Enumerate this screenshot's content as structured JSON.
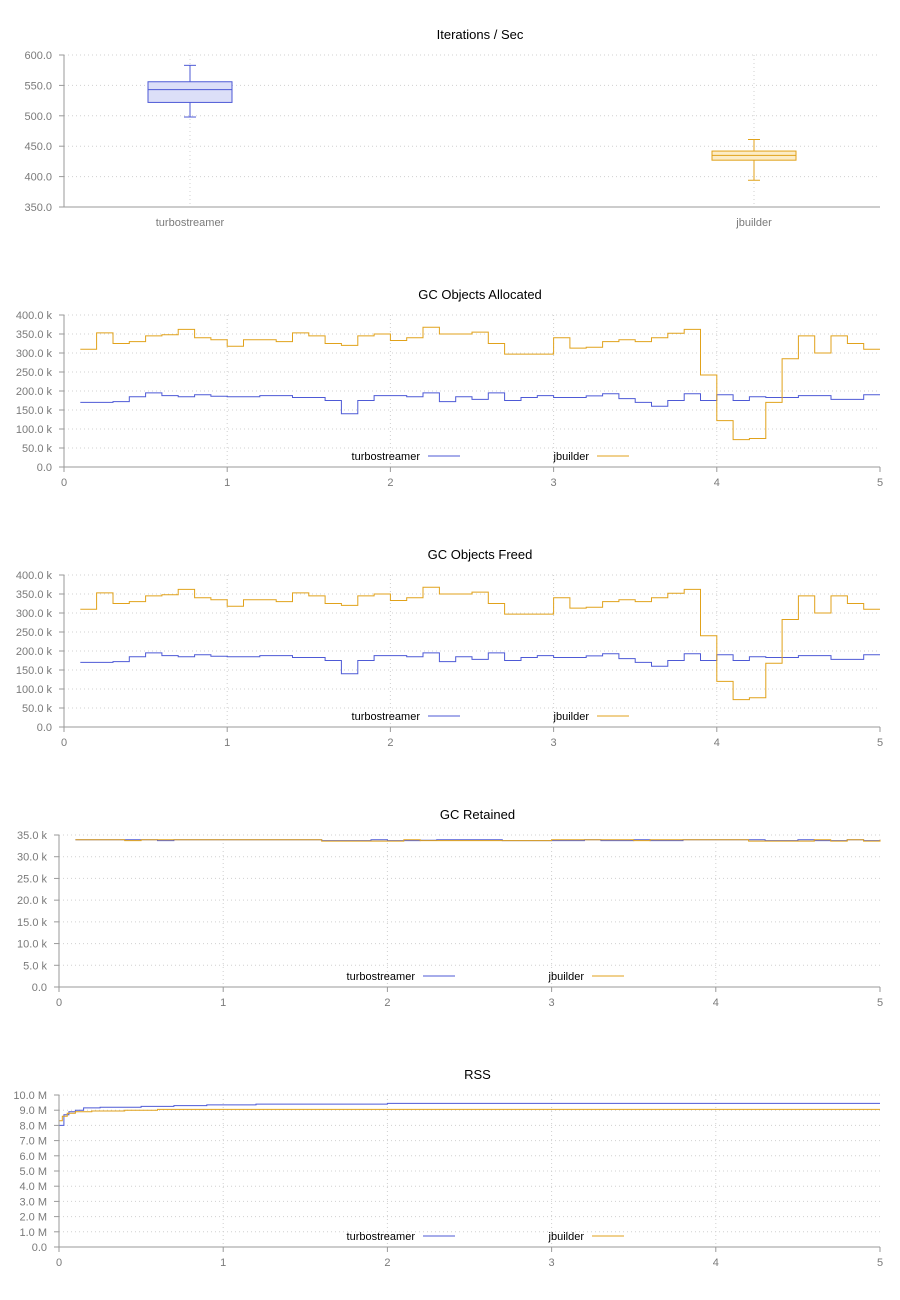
{
  "chart_data": [
    {
      "id": "ips",
      "type": "box",
      "title": "Iterations / Sec",
      "ylim": [
        350,
        600
      ],
      "yticks": [
        "350.0",
        "400.0",
        "450.0",
        "500.0",
        "550.0",
        "600.0"
      ],
      "ytick_values": [
        350,
        400,
        450,
        500,
        550,
        600
      ],
      "grid": true,
      "categories": [
        "turbostreamer",
        "jbuilder"
      ],
      "boxes": [
        {
          "name": "turbostreamer",
          "min": 498,
          "q1": 522,
          "median": 543,
          "q3": 556,
          "max": 583,
          "color": "#4e5ad6",
          "fill": "#dcdff8"
        },
        {
          "name": "jbuilder",
          "min": 394,
          "q1": 427,
          "median": 435,
          "q3": 442,
          "max": 461,
          "color": "#e1a21b",
          "fill": "#fcecc7"
        }
      ]
    },
    {
      "id": "alloc",
      "type": "step-line",
      "title": "GC Objects Allocated",
      "xlim": [
        0,
        5
      ],
      "xticks": [
        "0",
        "1",
        "2",
        "3",
        "4",
        "5"
      ],
      "ylim": [
        0,
        400000
      ],
      "yticks": [
        "0.0",
        "50.0 k",
        "100.0 k",
        "150.0 k",
        "200.0 k",
        "250.0 k",
        "300.0 k",
        "350.0 k",
        "400.0 k"
      ],
      "ytick_values": [
        0,
        50000,
        100000,
        150000,
        200000,
        250000,
        300000,
        350000,
        400000
      ],
      "grid": true,
      "legend": "bottom-center",
      "series": [
        {
          "name": "turbostreamer",
          "color": "#4e5ad6",
          "x": [
            0.1,
            0.3,
            0.4,
            0.5,
            0.6,
            0.7,
            0.8,
            0.9,
            1.0,
            1.2,
            1.4,
            1.6,
            1.7,
            1.8,
            1.9,
            2.1,
            2.2,
            2.3,
            2.4,
            2.5,
            2.6,
            2.7,
            2.8,
            2.9,
            3.0,
            3.2,
            3.3,
            3.4,
            3.5,
            3.6,
            3.7,
            3.8,
            3.9,
            4.0,
            4.1,
            4.2,
            4.3,
            4.5,
            4.7,
            4.9,
            5.0
          ],
          "y": [
            170000,
            172000,
            185000,
            195000,
            188000,
            185000,
            190000,
            186000,
            185000,
            188000,
            183000,
            175000,
            140000,
            175000,
            188000,
            185000,
            195000,
            172000,
            185000,
            178000,
            195000,
            175000,
            183000,
            188000,
            183000,
            187000,
            193000,
            180000,
            170000,
            160000,
            175000,
            193000,
            175000,
            190000,
            175000,
            185000,
            183000,
            188000,
            178000,
            190000,
            190000
          ]
        },
        {
          "name": "jbuilder",
          "color": "#e1a21b",
          "x": [
            0.1,
            0.2,
            0.3,
            0.4,
            0.5,
            0.6,
            0.7,
            0.8,
            0.9,
            1.0,
            1.1,
            1.3,
            1.4,
            1.5,
            1.6,
            1.7,
            1.8,
            1.9,
            2.0,
            2.1,
            2.2,
            2.3,
            2.4,
            2.5,
            2.6,
            2.7,
            2.8,
            3.0,
            3.1,
            3.2,
            3.3,
            3.4,
            3.5,
            3.6,
            3.7,
            3.8,
            3.9,
            4.0,
            4.1,
            4.2,
            4.3,
            4.4,
            4.5,
            4.6,
            4.7,
            4.8,
            4.9,
            5.0
          ],
          "y": [
            310000,
            353000,
            325000,
            330000,
            345000,
            348000,
            362000,
            340000,
            335000,
            318000,
            335000,
            330000,
            353000,
            345000,
            325000,
            320000,
            345000,
            350000,
            333000,
            340000,
            368000,
            350000,
            350000,
            355000,
            325000,
            297000,
            297000,
            340000,
            313000,
            315000,
            330000,
            335000,
            330000,
            340000,
            352000,
            362000,
            242000,
            122000,
            72000,
            75000,
            170000,
            285000,
            345000,
            300000,
            345000,
            325000,
            310000,
            310000
          ]
        }
      ]
    },
    {
      "id": "freed",
      "type": "step-line",
      "title": "GC Objects Freed",
      "xlim": [
        0,
        5
      ],
      "xticks": [
        "0",
        "1",
        "2",
        "3",
        "4",
        "5"
      ],
      "ylim": [
        0,
        400000
      ],
      "yticks": [
        "0.0",
        "50.0 k",
        "100.0 k",
        "150.0 k",
        "200.0 k",
        "250.0 k",
        "300.0 k",
        "350.0 k",
        "400.0 k"
      ],
      "ytick_values": [
        0,
        50000,
        100000,
        150000,
        200000,
        250000,
        300000,
        350000,
        400000
      ],
      "grid": true,
      "legend": "bottom-center",
      "series": [
        {
          "name": "turbostreamer",
          "color": "#4e5ad6",
          "x": [
            0.1,
            0.3,
            0.4,
            0.5,
            0.6,
            0.7,
            0.8,
            0.9,
            1.0,
            1.2,
            1.4,
            1.6,
            1.7,
            1.8,
            1.9,
            2.1,
            2.2,
            2.3,
            2.4,
            2.5,
            2.6,
            2.7,
            2.8,
            2.9,
            3.0,
            3.2,
            3.3,
            3.4,
            3.5,
            3.6,
            3.7,
            3.8,
            3.9,
            4.0,
            4.1,
            4.2,
            4.3,
            4.5,
            4.7,
            4.9,
            5.0
          ],
          "y": [
            170000,
            172000,
            185000,
            195000,
            188000,
            185000,
            190000,
            186000,
            185000,
            188000,
            183000,
            175000,
            140000,
            175000,
            188000,
            185000,
            195000,
            172000,
            185000,
            178000,
            195000,
            175000,
            183000,
            188000,
            183000,
            187000,
            193000,
            180000,
            170000,
            160000,
            175000,
            193000,
            175000,
            190000,
            175000,
            185000,
            183000,
            188000,
            178000,
            190000,
            190000
          ]
        },
        {
          "name": "jbuilder",
          "color": "#e1a21b",
          "x": [
            0.1,
            0.2,
            0.3,
            0.4,
            0.5,
            0.6,
            0.7,
            0.8,
            0.9,
            1.0,
            1.1,
            1.3,
            1.4,
            1.5,
            1.6,
            1.7,
            1.8,
            1.9,
            2.0,
            2.1,
            2.2,
            2.3,
            2.4,
            2.5,
            2.6,
            2.7,
            2.8,
            3.0,
            3.1,
            3.2,
            3.3,
            3.4,
            3.5,
            3.6,
            3.7,
            3.8,
            3.9,
            4.0,
            4.1,
            4.2,
            4.3,
            4.4,
            4.5,
            4.6,
            4.7,
            4.8,
            4.9,
            5.0
          ],
          "y": [
            310000,
            353000,
            325000,
            330000,
            345000,
            348000,
            362000,
            340000,
            335000,
            318000,
            335000,
            330000,
            353000,
            345000,
            325000,
            320000,
            345000,
            350000,
            333000,
            340000,
            368000,
            350000,
            350000,
            355000,
            325000,
            297000,
            297000,
            340000,
            313000,
            315000,
            330000,
            335000,
            330000,
            340000,
            352000,
            362000,
            240000,
            120000,
            72000,
            77000,
            168000,
            283000,
            345000,
            300000,
            345000,
            325000,
            310000,
            310000
          ]
        }
      ]
    },
    {
      "id": "retained",
      "type": "step-line",
      "title": "GC Retained",
      "xlim": [
        0,
        5
      ],
      "xticks": [
        "0",
        "1",
        "2",
        "3",
        "4",
        "5"
      ],
      "ylim": [
        0,
        35000
      ],
      "yticks": [
        "0.0",
        "5.0 k",
        "10.0 k",
        "15.0 k",
        "20.0 k",
        "25.0 k",
        "30.0 k",
        "35.0 k"
      ],
      "ytick_values": [
        0,
        5000,
        10000,
        15000,
        20000,
        25000,
        30000,
        35000
      ],
      "grid": true,
      "legend": "bottom-center",
      "series": [
        {
          "name": "turbostreamer",
          "color": "#4e5ad6",
          "x": [
            0.1,
            0.6,
            0.7,
            1.5,
            1.6,
            1.9,
            2.0,
            2.2,
            2.3,
            2.6,
            2.7,
            2.8,
            3.2,
            3.3,
            3.5,
            3.6,
            3.8,
            4.2,
            4.3,
            4.5,
            4.6,
            4.8,
            4.9,
            5.0
          ],
          "y": [
            33900,
            33700,
            33900,
            33900,
            33700,
            33900,
            33700,
            33800,
            33900,
            33900,
            33700,
            33700,
            33900,
            33700,
            33900,
            33700,
            33900,
            33900,
            33700,
            33900,
            33700,
            33900,
            33700,
            33900
          ]
        },
        {
          "name": "jbuilder",
          "color": "#e1a21b",
          "x": [
            0.1,
            0.4,
            0.5,
            1.5,
            1.6,
            2.1,
            2.2,
            3.0,
            3.5,
            3.6,
            4.0,
            4.2,
            4.6,
            4.7,
            4.8,
            4.9,
            5.0
          ],
          "y": [
            33900,
            33700,
            33900,
            33900,
            33600,
            33900,
            33700,
            33900,
            33700,
            33900,
            33900,
            33600,
            33900,
            33600,
            33900,
            33600,
            33900
          ]
        }
      ]
    },
    {
      "id": "rss",
      "type": "step-line",
      "title": "RSS",
      "xlim": [
        0,
        5
      ],
      "xticks": [
        "0",
        "1",
        "2",
        "3",
        "4",
        "5"
      ],
      "ylim": [
        0,
        10000000
      ],
      "yticks": [
        "0.0",
        "1.0 M",
        "2.0 M",
        "3.0 M",
        "4.0 M",
        "5.0 M",
        "6.0 M",
        "7.0 M",
        "8.0 M",
        "9.0 M",
        "10.0 M"
      ],
      "ytick_values": [
        0,
        1000000,
        2000000,
        3000000,
        4000000,
        5000000,
        6000000,
        7000000,
        8000000,
        9000000,
        10000000
      ],
      "grid": true,
      "legend": "bottom-center",
      "series": [
        {
          "name": "turbostreamer",
          "color": "#4e5ad6",
          "x": [
            0,
            0.03,
            0.06,
            0.1,
            0.15,
            0.25,
            0.5,
            0.7,
            0.9,
            1.2,
            2.0,
            5.0
          ],
          "y": [
            8000000,
            8700000,
            8900000,
            9000000,
            9150000,
            9200000,
            9250000,
            9300000,
            9350000,
            9400000,
            9450000,
            9450000
          ]
        },
        {
          "name": "jbuilder",
          "color": "#e1a21b",
          "x": [
            0,
            0.02,
            0.05,
            0.1,
            0.2,
            0.4,
            0.6,
            1.0,
            5.0
          ],
          "y": [
            8300000,
            8600000,
            8800000,
            8900000,
            8950000,
            9000000,
            9050000,
            9050000,
            9050000
          ]
        }
      ]
    }
  ]
}
